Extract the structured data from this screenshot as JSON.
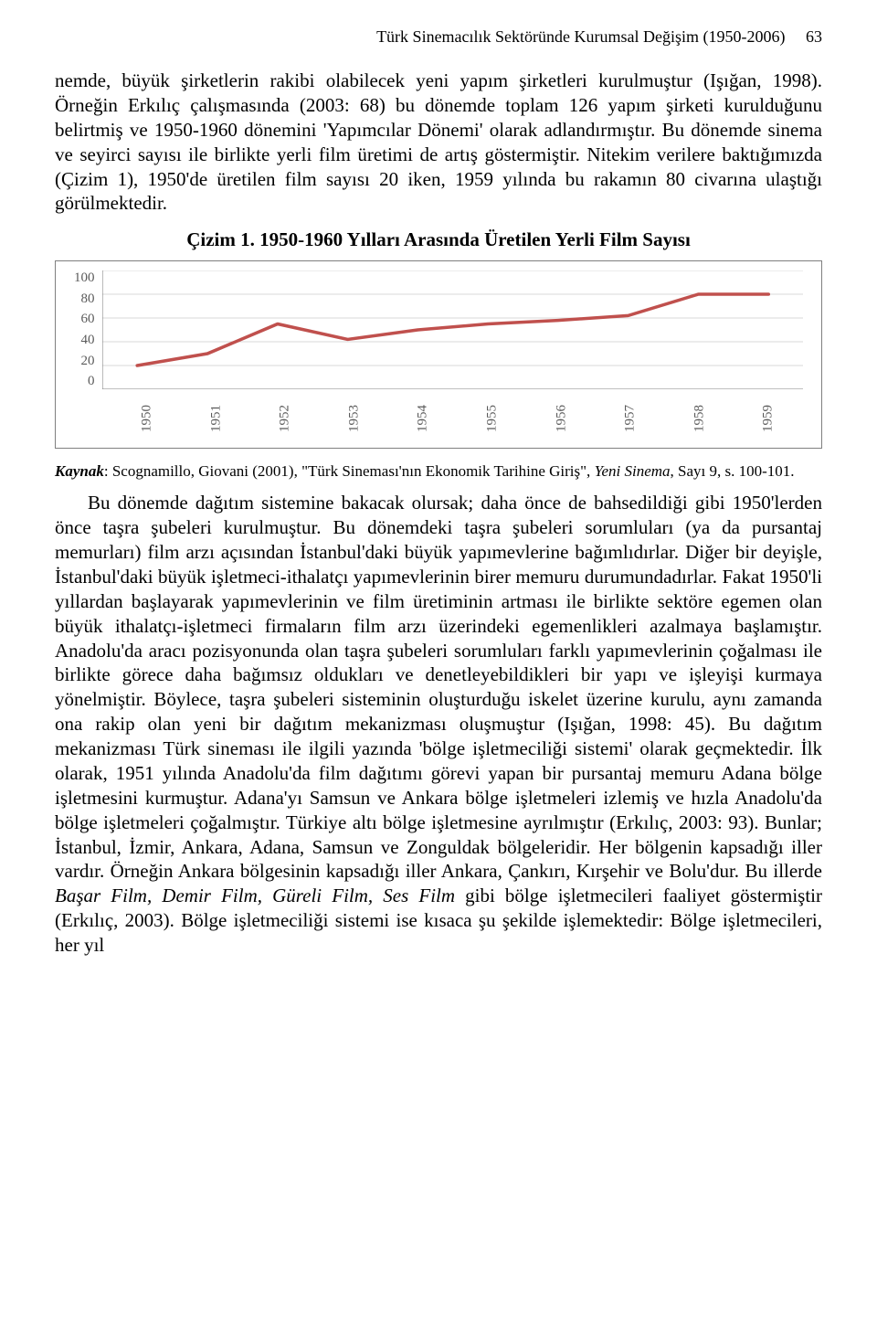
{
  "header": {
    "running_title": "Türk Sinemacılık Sektöründe Kurumsal Değişim (1950-2006)",
    "page_number": "63"
  },
  "para_top": "nemde, büyük şirketlerin rakibi olabilecek yeni yapım şirketleri kurulmuştur (Işığan, 1998). Örneğin Erkılıç çalışmasında (2003: 68) bu dönemde toplam 126 yapım şirketi kurulduğunu belirtmiş ve 1950-1960 dönemini 'Yapımcılar Dönemi' olarak adlandırmıştır. Bu dönemde sinema ve seyirci sayısı ile birlikte yerli film üretimi de artış göstermiştir. Nitekim verilere baktığımızda (Çizim 1), 1950'de üretilen film sayısı 20 iken, 1959 yılında bu rakamın 80 civarına ulaştığı görülmektedir.",
  "figure": {
    "title": "Çizim 1. 1950-1960 Yılları Arasında Üretilen Yerli Film Sayısı",
    "type": "line",
    "x_labels": [
      "1950",
      "1951",
      "1952",
      "1953",
      "1954",
      "1955",
      "1956",
      "1957",
      "1958",
      "1959"
    ],
    "y_ticks": [
      100,
      80,
      60,
      40,
      20,
      0
    ],
    "y_max": 100,
    "values": [
      20,
      30,
      55,
      42,
      50,
      55,
      58,
      62,
      80,
      80
    ],
    "line_color": "#c0504d",
    "line_width": 3.5,
    "axis_color": "#808080",
    "grid_color": "#d9d9d9",
    "tick_font_color": "#5a5a5a",
    "background": "#ffffff"
  },
  "caption": {
    "label": "Kaynak",
    "text_before_italic": ": Scognamillo, Giovani (2001), \"Türk Sineması'nın Ekonomik Tarihine Giriş\", ",
    "italic_part": "Yeni Sinema",
    "text_after_italic": ", Sayı 9, s. 100-101."
  },
  "para_bottom_before_italic": "Bu dönemde dağıtım sistemine bakacak olursak; daha önce de bahsedildiği gibi 1950'lerden önce taşra şubeleri kurulmuştur. Bu dönemdeki taşra şubeleri sorumluları (ya da pursantaj memurları) film arzı açısından İstanbul'daki büyük yapımevlerine bağımlıdırlar. Diğer bir deyişle, İstanbul'daki büyük işletmeci-ithalatçı yapımevlerinin birer memuru durumundadırlar. Fakat 1950'li yıllardan başlayarak yapımevlerinin ve film üretiminin artması ile birlikte sektöre egemen olan büyük ithalatçı-işletmeci firmaların film arzı üzerindeki egemenlikleri azalmaya başlamıştır. Anadolu'da aracı pozisyonunda olan taşra şubeleri sorumluları farklı yapımevlerinin çoğalması ile birlikte görece daha bağımsız oldukları ve denetleyebildikleri bir yapı ve işleyişi kurmaya yönelmiştir. Böylece, taşra şubeleri sisteminin oluşturduğu iskelet üzerine kurulu, aynı zamanda ona rakip olan yeni bir dağıtım mekanizması oluşmuştur (Işığan, 1998: 45). Bu dağıtım mekanizması Türk sineması ile ilgili yazında 'bölge işletmeciliği sistemi' olarak geçmektedir. İlk olarak, 1951 yılında Anadolu'da film dağıtımı görevi yapan bir pursantaj memuru Adana bölge işletmesini kurmuştur. Adana'yı Samsun ve Ankara bölge işletmeleri izlemiş ve hızla Anadolu'da bölge işletmeleri çoğalmıştır. Türkiye altı bölge işletmesine ayrılmıştır (Erkılıç, 2003: 93). Bunlar; İstanbul, İzmir, Ankara, Adana, Samsun ve Zonguldak bölgeleridir. Her bölgenin kapsadığı iller vardır. Örneğin Ankara bölgesinin kapsadığı iller Ankara, Çankırı, Kırşehir ve Bolu'dur. Bu illerde ",
  "para_bottom_italic": "Başar Film, Demir Film, Güreli Film, Ses Film",
  "para_bottom_after_italic": " gibi bölge işletmecileri faaliyet göstermiştir (Erkılıç, 2003). Bölge işletmeciliği sistemi ise kısaca şu şekilde işlemektedir: Bölge işletmecileri, her yıl"
}
